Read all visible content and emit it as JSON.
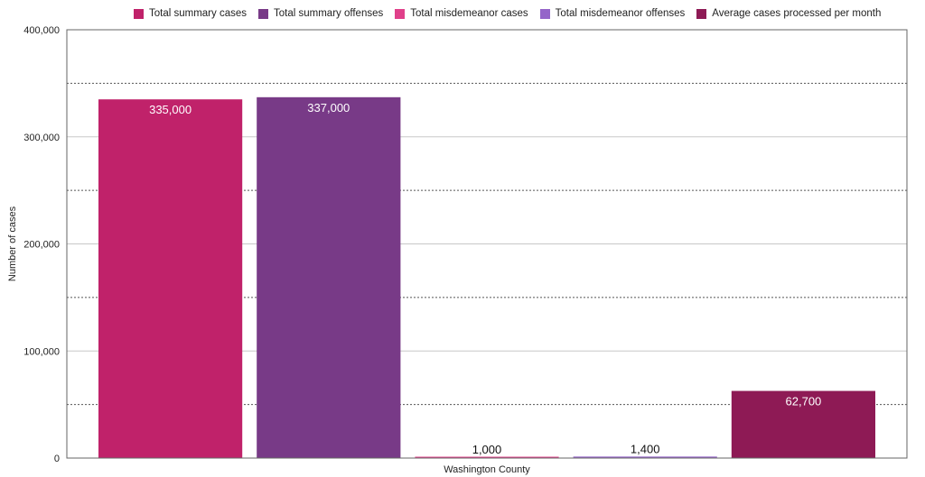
{
  "chart_data": {
    "type": "bar",
    "categories": [
      "Washington County"
    ],
    "series": [
      {
        "name": "Total summary cases",
        "values": [
          335000
        ],
        "color": "#c0226a",
        "label": "335,000",
        "label_position": "inside"
      },
      {
        "name": "Total summary offenses",
        "values": [
          337000
        ],
        "color": "#783a87",
        "label": "337,000",
        "label_position": "inside"
      },
      {
        "name": "Total misdemeanor cases",
        "values": [
          1000
        ],
        "color": "#e0408a",
        "label": "1,000",
        "label_position": "above"
      },
      {
        "name": "Total misdemeanor offenses",
        "values": [
          1400
        ],
        "color": "#9565c9",
        "label": "1,400",
        "label_position": "above"
      },
      {
        "name": "Average cases processed per month",
        "values": [
          62700
        ],
        "color": "#8e1a55",
        "label": "62,700",
        "label_position": "inside"
      }
    ],
    "title": "",
    "xlabel": "Washington County",
    "ylabel": "Number of cases",
    "ylim": [
      0,
      400000
    ],
    "yticks": [
      {
        "value": 0,
        "label": "0"
      },
      {
        "value": 100000,
        "label": "100,000"
      },
      {
        "value": 200000,
        "label": "200,000"
      },
      {
        "value": 300000,
        "label": "300,000"
      },
      {
        "value": 400000,
        "label": "400,000"
      }
    ],
    "minor_gridlines": [
      50000,
      150000,
      250000,
      350000
    ],
    "grid": true,
    "legend": "top"
  }
}
